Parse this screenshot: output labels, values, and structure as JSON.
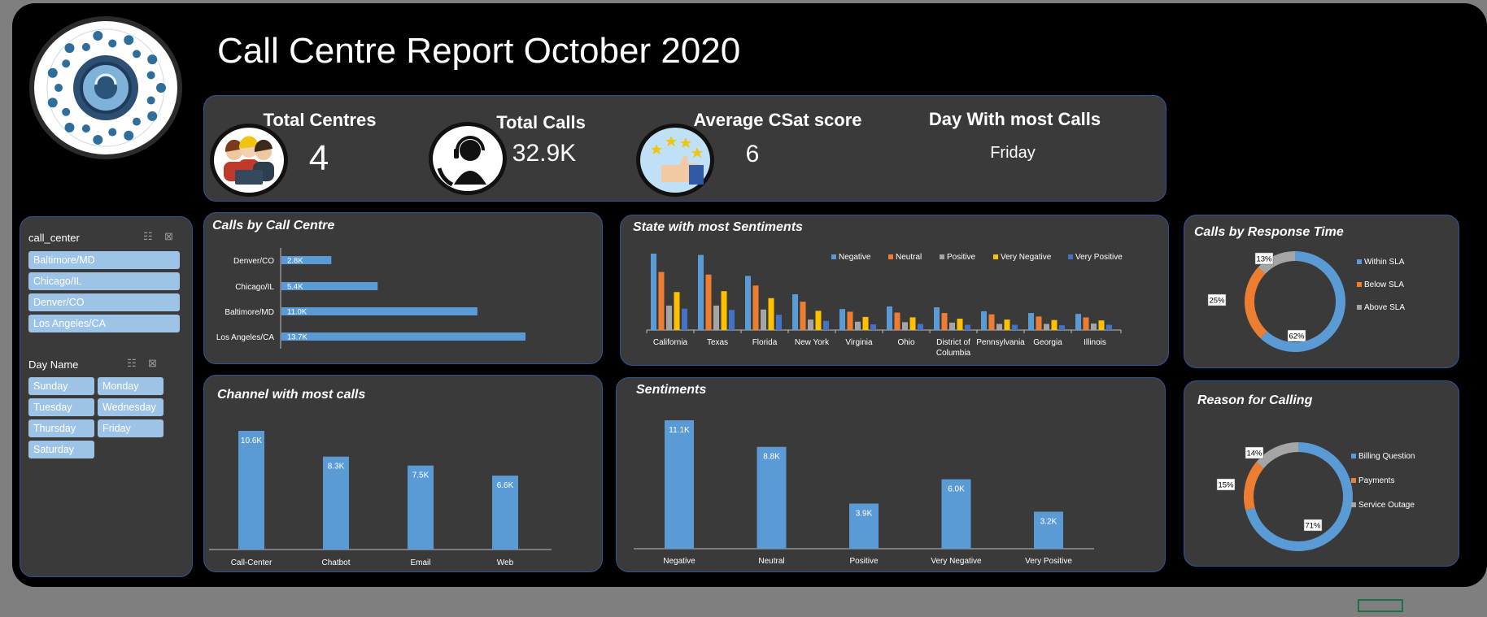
{
  "title": "Call Centre Report October 2020",
  "kpis": {
    "total_centres": {
      "label": "Total Centres",
      "value": "4"
    },
    "total_calls": {
      "label": "Total Calls",
      "value": "32.9K"
    },
    "avg_csat": {
      "label": "Average CSat score",
      "value": "6"
    },
    "busiest_day": {
      "label": "Day With most Calls",
      "value": "Friday"
    }
  },
  "slicers": {
    "call_center": {
      "header": "call_center",
      "items": [
        "Baltimore/MD",
        "Chicago/IL",
        "Denver/CO",
        "Los Angeles/CA"
      ]
    },
    "day_name": {
      "header": "Day Name",
      "items": [
        "Sunday",
        "Monday",
        "Tuesday",
        "Wednesday",
        "Thursday",
        "Friday",
        "Saturday"
      ]
    }
  },
  "colors": {
    "blue": "#5b9bd5",
    "orange": "#ed7d31",
    "gray": "#a5a5a5",
    "yellow": "#ffc000",
    "darkblue": "#4472c4",
    "panel": "#3a3a3a",
    "border": "#2f5597"
  },
  "chart_data": [
    {
      "id": "calls_by_centre",
      "type": "bar",
      "orientation": "horizontal",
      "title": "Calls by Call Centre",
      "categories": [
        "Denver/CO",
        "Chicago/IL",
        "Baltimore/MD",
        "Los Angeles/CA"
      ],
      "values": [
        2.8,
        5.4,
        11.0,
        13.7
      ],
      "labels": [
        "2.8K",
        "5.4K",
        "11.0K",
        "13.7K"
      ],
      "unit": "K"
    },
    {
      "id": "state_sentiments",
      "type": "bar",
      "title": "State with most Sentiments",
      "categories": [
        "California",
        "Texas",
        "Florida",
        "New York",
        "Virginia",
        "Ohio",
        "District of Columbia",
        "Pennsylvania",
        "Georgia",
        "Illinois"
      ],
      "legend_position": "top",
      "series": [
        {
          "name": "Negative",
          "color": "#5b9bd5",
          "values": [
            1750,
            1720,
            1240,
            820,
            480,
            540,
            520,
            430,
            390,
            370
          ]
        },
        {
          "name": "Neutral",
          "color": "#ed7d31",
          "values": [
            1330,
            1270,
            1020,
            650,
            420,
            400,
            390,
            360,
            310,
            290
          ]
        },
        {
          "name": "Positive",
          "color": "#a5a5a5",
          "values": [
            560,
            560,
            470,
            240,
            190,
            180,
            170,
            140,
            140,
            150
          ]
        },
        {
          "name": "Very Negative",
          "color": "#ffc000",
          "values": [
            870,
            890,
            730,
            440,
            300,
            290,
            260,
            240,
            230,
            220
          ]
        },
        {
          "name": "Very Positive",
          "color": "#4472c4",
          "values": [
            490,
            460,
            350,
            210,
            130,
            140,
            120,
            120,
            110,
            120
          ]
        }
      ]
    },
    {
      "id": "response_time",
      "type": "pie",
      "donut": true,
      "title": "Calls by Response Time",
      "categories": [
        "Within SLA",
        "Below SLA",
        "Above SLA"
      ],
      "values": [
        62,
        25,
        13
      ],
      "labels": [
        "62%",
        "25%",
        "13%"
      ],
      "colors": [
        "#5b9bd5",
        "#ed7d31",
        "#a5a5a5"
      ]
    },
    {
      "id": "channel",
      "type": "bar",
      "title": "Channel with most calls",
      "categories": [
        "Call-Center",
        "Chatbot",
        "Email",
        "Web"
      ],
      "values": [
        10.6,
        8.3,
        7.5,
        6.6
      ],
      "labels": [
        "10.6K",
        "8.3K",
        "7.5K",
        "6.6K"
      ],
      "unit": "K"
    },
    {
      "id": "sentiments",
      "type": "bar",
      "title": "Sentiments",
      "categories": [
        "Negative",
        "Neutral",
        "Positive",
        "Very Negative",
        "Very Positive"
      ],
      "values": [
        11.1,
        8.8,
        3.9,
        6.0,
        3.2
      ],
      "labels": [
        "11.1K",
        "8.8K",
        "3.9K",
        "6.0K",
        "3.2K"
      ],
      "unit": "K"
    },
    {
      "id": "reason",
      "type": "pie",
      "donut": true,
      "title": "Reason for Calling",
      "categories": [
        "Billing Question",
        "Payments",
        "Service Outage"
      ],
      "values": [
        71,
        15,
        14
      ],
      "labels": [
        "71%",
        "15%",
        "14%"
      ],
      "colors": [
        "#5b9bd5",
        "#ed7d31",
        "#a5a5a5"
      ]
    }
  ]
}
